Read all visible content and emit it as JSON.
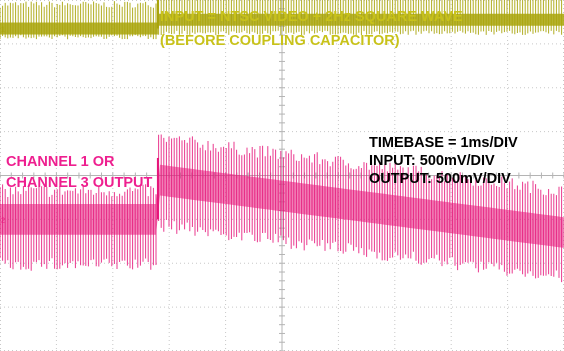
{
  "colors": {
    "input_trace": "#a9a40a",
    "output_trace": "#e6157a",
    "grid": "#c8c8c8",
    "label_input": "#c8c21a",
    "label_output": "#ee1f8f",
    "label_scales": "#000000"
  },
  "annotations": {
    "input_line1": "INPUT = NTSC VIDEO + 2Hz SQUARE WAVE",
    "input_line2": "(BEFORE COUPLING CAPACITOR)",
    "channel_line1": "CHANNEL 1 OR",
    "channel_line2": "CHANNEL 3 OUTPUT",
    "timebase": "TIMEBASE = 1ms/DIV",
    "input_scale": "INPUT: 500mV/DIV",
    "output_scale": "OUTPUT: 500mV/DIV"
  },
  "chart_data": {
    "type": "line",
    "timebase_ms_per_div": 1,
    "x_divisions": 10,
    "y_divisions": 8,
    "x_range_ms": [
      0,
      10
    ],
    "grid": true,
    "series": [
      {
        "name": "INPUT",
        "volts_per_div": 0.5,
        "channel_marker": "1",
        "square_wave_step_ms": 2.8,
        "baseline_low_div": 3.35,
        "baseline_high_div": 3.55,
        "pulse_top_div": 4.0,
        "sync_dip_div": 3.2
      },
      {
        "name": "OUTPUT",
        "volts_per_div": 0.5,
        "channel_marker": "2",
        "step_ms": 2.8,
        "level_before_step_div": -1.0,
        "level_after_step_div": -0.1,
        "level_at_end_div": -1.3,
        "video_swing_top_div": 0.5,
        "sync_tip_swing_div": -2.6
      }
    ]
  }
}
